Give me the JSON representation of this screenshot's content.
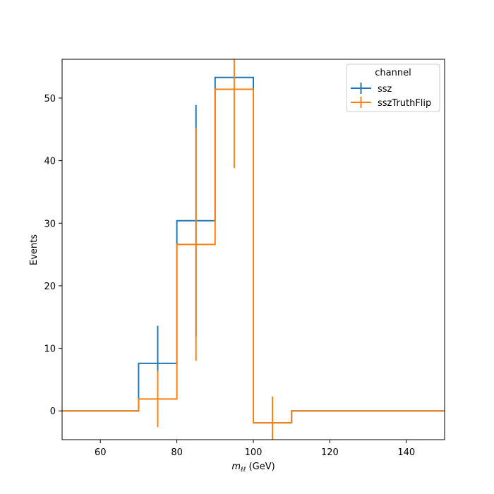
{
  "chart_data": {
    "type": "histogram-step",
    "xlabel_main": "m",
    "xlabel_sub": "ℓℓ",
    "xlabel_unit": " (GeV)",
    "ylabel": "Events",
    "xlim": [
      50,
      150
    ],
    "ylim": [
      -4.6,
      56.2
    ],
    "x_ticks": [
      60,
      80,
      100,
      120,
      140
    ],
    "y_ticks": [
      0,
      10,
      20,
      30,
      40,
      50
    ],
    "bin_edges": [
      50,
      60,
      70,
      80,
      90,
      100,
      110,
      120,
      130,
      140,
      150
    ],
    "grid": false,
    "legend": {
      "title": "channel",
      "position": "top-right"
    },
    "series": [
      {
        "name": "ssz",
        "color": "#1f77b4",
        "values": [
          0,
          0,
          7.6,
          30.4,
          53.3,
          -1.9,
          0,
          0,
          0,
          0
        ],
        "errors": [
          0,
          0,
          6.0,
          18.5,
          0,
          0,
          0,
          0,
          0,
          0
        ]
      },
      {
        "name": "sszTruthFlip",
        "color": "#ff7f0e",
        "values": [
          0,
          0,
          1.9,
          26.6,
          51.4,
          -1.9,
          0,
          0,
          0,
          0
        ],
        "errors": [
          0,
          0,
          4.5,
          18.6,
          12.6,
          4.2,
          0,
          0,
          0,
          0
        ]
      }
    ]
  }
}
